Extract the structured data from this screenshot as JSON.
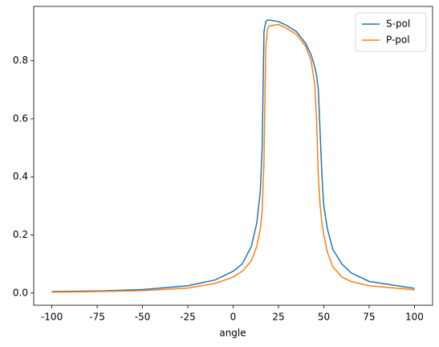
{
  "chart_data": {
    "type": "line",
    "xlabel": "angle",
    "x": [
      -100,
      -75,
      -50,
      -25,
      -10,
      0,
      5,
      10,
      13,
      15,
      16,
      17,
      18,
      19,
      20,
      25,
      30,
      35,
      40,
      43,
      45,
      46,
      47,
      48,
      49,
      50,
      52,
      55,
      60,
      65,
      75,
      100
    ],
    "series": [
      {
        "name": "S-pol",
        "color": "#1f77b4",
        "values": [
          0.005,
          0.007,
          0.012,
          0.025,
          0.045,
          0.075,
          0.1,
          0.16,
          0.24,
          0.35,
          0.5,
          0.9,
          0.935,
          0.94,
          0.94,
          0.935,
          0.92,
          0.9,
          0.86,
          0.82,
          0.78,
          0.75,
          0.7,
          0.55,
          0.4,
          0.3,
          0.22,
          0.15,
          0.1,
          0.07,
          0.04,
          0.016
        ]
      },
      {
        "name": "P-pol",
        "color": "#ff7f0e",
        "values": [
          0.003,
          0.005,
          0.008,
          0.017,
          0.033,
          0.055,
          0.075,
          0.11,
          0.16,
          0.22,
          0.28,
          0.45,
          0.85,
          0.91,
          0.92,
          0.925,
          0.91,
          0.89,
          0.85,
          0.8,
          0.72,
          0.6,
          0.4,
          0.3,
          0.24,
          0.2,
          0.14,
          0.09,
          0.055,
          0.04,
          0.025,
          0.011
        ]
      }
    ],
    "xlim": [
      -110,
      110
    ],
    "ylim": [
      -0.042,
      0.987
    ],
    "xticks": [
      -100,
      -75,
      -50,
      -25,
      0,
      25,
      50,
      75,
      100
    ],
    "yticks": [
      {
        "value": 0,
        "label": "0.0"
      },
      0.2,
      0.4,
      0.6,
      0.8
    ],
    "legend": "upper right"
  }
}
